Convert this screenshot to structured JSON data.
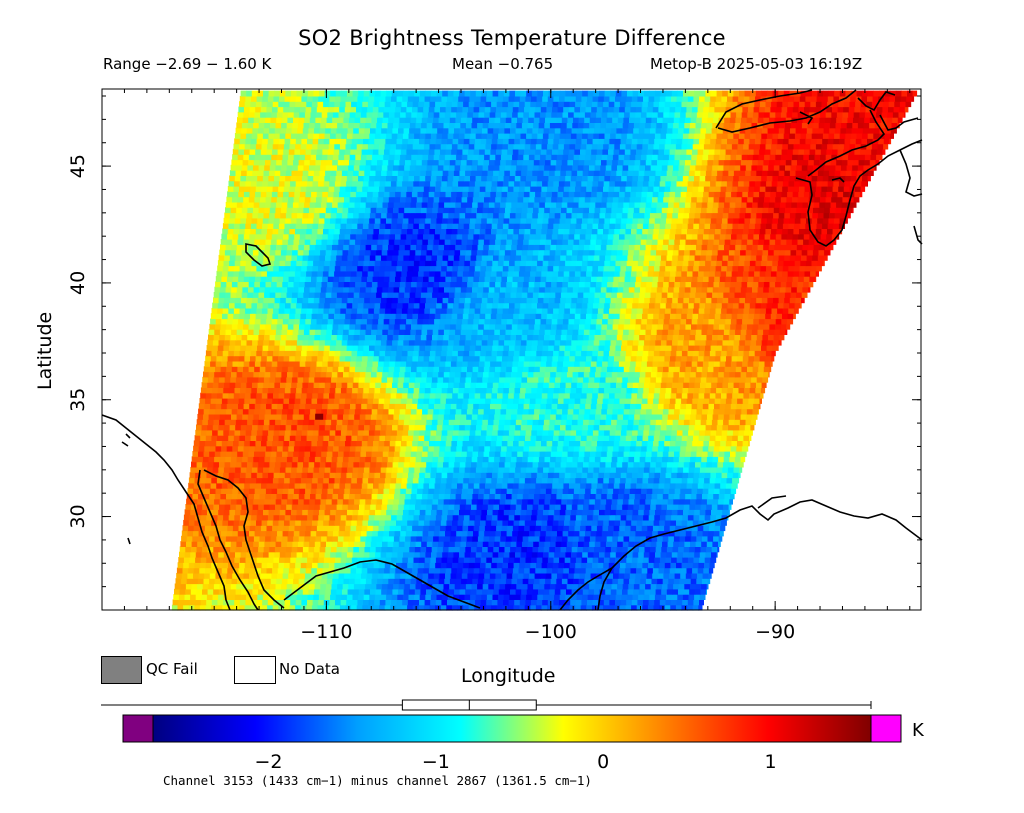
{
  "title": "SO2 Brightness Temperature Difference",
  "subtitle": {
    "range": "Range −2.69 − 1.60 K",
    "mean": "Mean −0.765",
    "satellite": "Metop-B 2025-05-03 16:19Z"
  },
  "axes": {
    "xlabel": "Longitude",
    "ylabel": "Latitude",
    "lon_range": [
      -120,
      -83.5
    ],
    "lat_range": [
      26,
      48.3
    ],
    "x_ticks": [
      {
        "value": -110,
        "label": "−110"
      },
      {
        "value": -100,
        "label": "−100"
      },
      {
        "value": -90,
        "label": "−90"
      }
    ],
    "y_ticks": [
      {
        "value": 30,
        "label": "30"
      },
      {
        "value": 35,
        "label": "35"
      },
      {
        "value": 40,
        "label": "40"
      },
      {
        "value": 45,
        "label": "45"
      }
    ]
  },
  "legend": {
    "qc_fail": "QC Fail",
    "no_data": "No Data",
    "qc_fail_color": "#808080",
    "no_data_color": "#ffffff"
  },
  "colorbar": {
    "range": [
      -2.69,
      1.6
    ],
    "unit": "K",
    "ticks": [
      {
        "value": -2,
        "label": "−2"
      },
      {
        "value": -1,
        "label": "−1"
      },
      {
        "value": 0,
        "label": "0"
      },
      {
        "value": 1,
        "label": "1"
      }
    ],
    "under_color": "#800080",
    "over_color": "#ff00ff",
    "colors": [
      "#000080",
      "#0000ff",
      "#00a0ff",
      "#00ffff",
      "#ffff00",
      "#ff8000",
      "#ff0000",
      "#800000"
    ],
    "boxplot": {
      "whisker_low": -2.69,
      "q1": -1.2,
      "median": -0.8,
      "q3": -0.4,
      "whisker_high": 1.6
    }
  },
  "footer": "Channel 3153 (1433 cm−1) minus channel 2867 (1361.5 cm−1)",
  "chart_data": {
    "type": "heatmap",
    "title": "SO2 Brightness Temperature Difference",
    "xlabel": "Longitude",
    "ylabel": "Latitude",
    "xlim": [
      -120,
      -83.5
    ],
    "ylim": [
      26,
      48.3
    ],
    "value_range": [
      -2.69,
      1.6
    ],
    "mean": -0.765,
    "unit": "K",
    "swath_edges": {
      "west": [
        {
          "lat": 26,
          "lon": -116.9
        },
        {
          "lat": 48.3,
          "lon": -113.8
        }
      ],
      "east": [
        {
          "lat": 26,
          "lon": -93.3
        },
        {
          "lat": 37,
          "lon": -90
        },
        {
          "lat": 48.3,
          "lon": -83.6
        }
      ]
    },
    "features": [
      {
        "lat": 46,
        "lon": -100,
        "value": -1.5
      },
      {
        "lat": 40.5,
        "lon": -106,
        "value": -1.9
      },
      {
        "lat": 39,
        "lon": -102,
        "value": -1.3
      },
      {
        "lat": 35,
        "lon": -99,
        "value": -0.8
      },
      {
        "lat": 33.5,
        "lon": -111.5,
        "value": 0.6
      },
      {
        "lat": 28.5,
        "lon": -101,
        "value": -1.9
      },
      {
        "lat": 29,
        "lon": -97,
        "value": -1.7
      },
      {
        "lat": 38.5,
        "lon": -89,
        "value": 0.8
      },
      {
        "lat": 43,
        "lon": -86.5,
        "value": 1.1
      },
      {
        "lat": 46.5,
        "lon": -84.5,
        "value": 1.0
      },
      {
        "lat": 44,
        "lon": -113,
        "value": -0.3
      },
      {
        "lat": 37,
        "lon": -93,
        "value": 0.2
      }
    ]
  }
}
